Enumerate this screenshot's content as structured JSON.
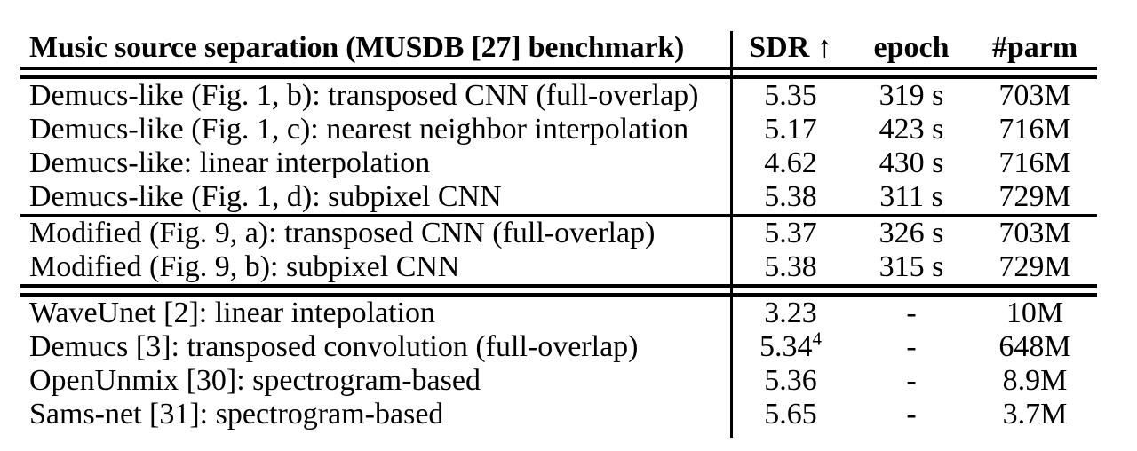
{
  "page": {
    "background_color": "#ffffff",
    "text_color": "#000000"
  },
  "table": {
    "header": {
      "title": "Music source separation (MUSDB [27] benchmark)",
      "columns": {
        "sdr": "SDR",
        "sdr_arrow": "↑",
        "epoch": "epoch",
        "parm": "#parm"
      }
    },
    "sections": [
      {
        "name": "demucs-like-variants",
        "rows": [
          {
            "label": "Demucs-like (Fig. 1, b): transposed CNN (full-overlap)",
            "sdr": "5.35",
            "sdr_sup": "",
            "epoch": "319 s",
            "parm": "703M"
          },
          {
            "label": "Demucs-like (Fig. 1, c): nearest neighbor interpolation",
            "sdr": "5.17",
            "sdr_sup": "",
            "epoch": "423 s",
            "parm": "716M"
          },
          {
            "label": "Demucs-like: linear interpolation",
            "sdr": "4.62",
            "sdr_sup": "",
            "epoch": "430 s",
            "parm": "716M"
          },
          {
            "label": "Demucs-like (Fig. 1, d): subpixel CNN",
            "sdr": "5.38",
            "sdr_sup": "",
            "epoch": "311 s",
            "parm": "729M"
          }
        ]
      },
      {
        "name": "modified-variants",
        "rows": [
          {
            "label": "Modified (Fig. 9, a): transposed CNN (full-overlap)",
            "sdr": "5.37",
            "sdr_sup": "",
            "epoch": "326 s",
            "parm": "703M"
          },
          {
            "label": "Modified (Fig. 9, b): subpixel CNN",
            "sdr": "5.38",
            "sdr_sup": "",
            "epoch": "315 s",
            "parm": "729M"
          }
        ]
      },
      {
        "name": "baselines",
        "rows": [
          {
            "label": "WaveUnet [2]: linear intepolation",
            "sdr": "3.23",
            "sdr_sup": "",
            "epoch": "-",
            "parm": "10M"
          },
          {
            "label": "Demucs [3]: transposed convolution (full-overlap)",
            "sdr": "5.34",
            "sdr_sup": "4",
            "epoch": "-",
            "parm": "648M"
          },
          {
            "label": "OpenUnmix [30]: spectrogram-based",
            "sdr": "5.36",
            "sdr_sup": "",
            "epoch": "-",
            "parm": "8.9M"
          },
          {
            "label": "Sams-net [31]: spectrogram-based",
            "sdr": "5.65",
            "sdr_sup": "",
            "epoch": "-",
            "parm": "3.7M"
          }
        ]
      }
    ]
  }
}
